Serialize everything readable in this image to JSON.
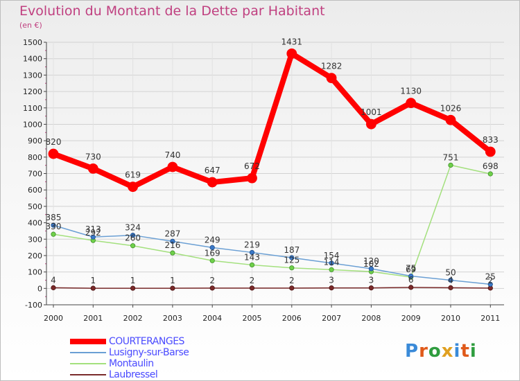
{
  "title": "Evolution du Montant de la Dette par Habitant",
  "subtitle": "(en €)",
  "logo": {
    "text": "Proxiti",
    "colors": [
      "#3a8ad8",
      "#e05a1a",
      "#2f9d3f",
      "#e0a020",
      "#3a8ad8",
      "#e05a1a",
      "#2f9d3f"
    ]
  },
  "chart_data": {
    "type": "line",
    "title": "Evolution du Montant de la Dette par Habitant",
    "ylabel": "(en €)",
    "x": [
      "2000",
      "2001",
      "2002",
      "2003",
      "2004",
      "2005",
      "2006",
      "2007",
      "2008",
      "2009",
      "2010",
      "2011"
    ],
    "ylim": [
      -100,
      1500
    ],
    "yticks": [
      -100,
      0,
      100,
      200,
      300,
      400,
      500,
      600,
      700,
      800,
      900,
      1000,
      1100,
      1200,
      1300,
      1400,
      1500
    ],
    "grid": true,
    "legend_position": "bottom-left",
    "series": [
      {
        "name": "COURTERANGES",
        "color": "#ff0000",
        "values": [
          820,
          730,
          619,
          740,
          647,
          672,
          1431,
          1282,
          1001,
          1130,
          1026,
          833
        ],
        "labels": [
          "820",
          "730",
          "619",
          "740",
          "647",
          "672",
          "1431",
          "1282",
          "1001",
          "1130",
          "1026",
          "833"
        ]
      },
      {
        "name": "Lusigny-sur-Barse",
        "color": "#6a9fd4",
        "values": [
          385,
          313,
          324,
          287,
          249,
          219,
          187,
          154,
          120,
          75,
          50,
          25
        ],
        "labels": [
          "385",
          "313",
          "324",
          "287",
          "249",
          "219",
          "187",
          "154",
          "120",
          "75",
          "50",
          "25"
        ]
      },
      {
        "name": "Montaulin",
        "color": "#a3e07d",
        "values": [
          330,
          292,
          260,
          216,
          169,
          143,
          125,
          114,
          102,
          69,
          751,
          698
        ],
        "labels": [
          "330",
          "292",
          "260",
          "216",
          "169",
          "143",
          "125",
          "114",
          "102",
          "69",
          "751",
          "698"
        ]
      },
      {
        "name": "Laubressel",
        "color": "#7a2a2a",
        "values": [
          4,
          1,
          1,
          1,
          2,
          2,
          2,
          3,
          3,
          6,
          4,
          2
        ],
        "labels": [
          "4",
          "1",
          "1",
          "1",
          "2",
          "2",
          "2",
          "3",
          "3",
          "6",
          "4",
          "2"
        ]
      }
    ]
  }
}
